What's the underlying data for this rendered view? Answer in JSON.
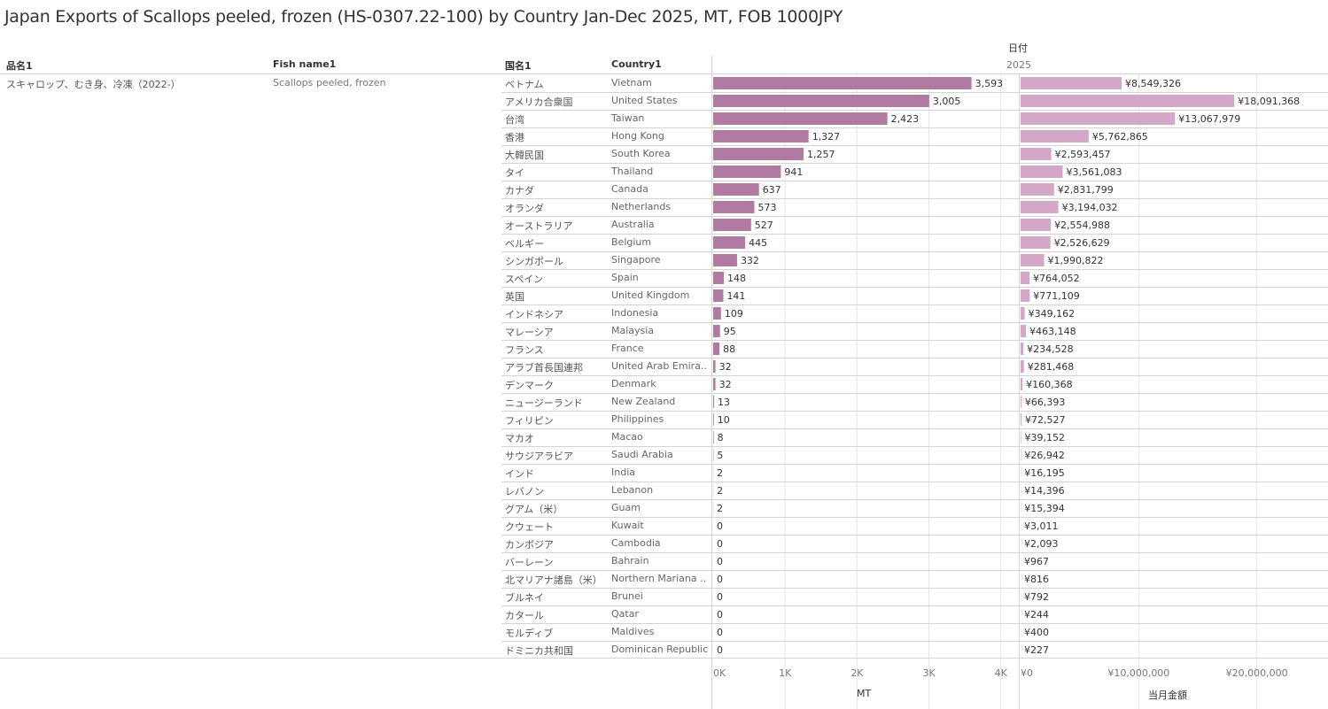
{
  "title": "Japan Exports of Scallops peeled, frozen (HS-0307.22-100) by Country Jan-Dec 2025, MT, FOB 1000JPY",
  "headers": {
    "product_jp": "品名1",
    "product_en": "Fish name1",
    "country_jp": "国名1",
    "country_en": "Country1",
    "date_field": "日付",
    "year": "2025"
  },
  "product": {
    "jp": "スキャロップ、むき身、冷凍（2022-）",
    "en": "Scallops peeled, frozen"
  },
  "colors": {
    "mt_bar": "#b07aa1",
    "value_bar": "#d4a6c8",
    "grid": "#e6e6e6",
    "rule": "#d4d4d4"
  },
  "chart_data": [
    {
      "type": "bar",
      "orientation": "horizontal",
      "xlabel": "MT",
      "xlim": [
        0,
        4300
      ],
      "ticks": [
        0,
        1000,
        2000,
        3000,
        4000
      ],
      "tick_labels": [
        "0K",
        "1K",
        "2K",
        "3K",
        "4K"
      ],
      "grid": true,
      "values": [
        3593,
        3005,
        2423,
        1327,
        1257,
        941,
        637,
        573,
        527,
        445,
        332,
        148,
        141,
        109,
        95,
        88,
        32,
        32,
        13,
        10,
        8,
        5,
        2,
        2,
        2,
        0,
        0,
        0,
        0,
        0,
        0,
        0,
        0
      ],
      "labels": [
        "3,593",
        "3,005",
        "2,423",
        "1,327",
        "1,257",
        "941",
        "637",
        "573",
        "527",
        "445",
        "332",
        "148",
        "141",
        "109",
        "95",
        "88",
        "32",
        "32",
        "13",
        "10",
        "8",
        "5",
        "2",
        "2",
        "2",
        "0",
        "0",
        "0",
        "0",
        "0",
        "0",
        "0",
        "0"
      ]
    },
    {
      "type": "bar",
      "orientation": "horizontal",
      "xlabel": "当月金額",
      "xlim": [
        0,
        25500000
      ],
      "ticks": [
        0,
        10000000,
        20000000
      ],
      "tick_labels": [
        "¥0",
        "¥10,000,000",
        "¥20,000,000"
      ],
      "grid": true,
      "values": [
        8549326,
        18091368,
        13067979,
        5762865,
        2593457,
        3561083,
        2831799,
        3194032,
        2554988,
        2526629,
        1990822,
        764052,
        771109,
        349162,
        463148,
        234528,
        281468,
        160368,
        66393,
        72527,
        39152,
        26942,
        16195,
        14396,
        15394,
        3011,
        2093,
        967,
        816,
        792,
        244,
        400,
        227
      ],
      "labels": [
        "¥8,549,326",
        "¥18,091,368",
        "¥13,067,979",
        "¥5,762,865",
        "¥2,593,457",
        "¥3,561,083",
        "¥2,831,799",
        "¥3,194,032",
        "¥2,554,988",
        "¥2,526,629",
        "¥1,990,822",
        "¥764,052",
        "¥771,109",
        "¥349,162",
        "¥463,148",
        "¥234,528",
        "¥281,468",
        "¥160,368",
        "¥66,393",
        "¥72,527",
        "¥39,152",
        "¥26,942",
        "¥16,195",
        "¥14,396",
        "¥15,394",
        "¥3,011",
        "¥2,093",
        "¥967",
        "¥816",
        "¥792",
        "¥244",
        "¥400",
        "¥227"
      ]
    }
  ],
  "countries": [
    {
      "jp": "ベトナム",
      "en": "Vietnam"
    },
    {
      "jp": "アメリカ合衆国",
      "en": "United States"
    },
    {
      "jp": "台湾",
      "en": "Taiwan"
    },
    {
      "jp": "香港",
      "en": "Hong Kong"
    },
    {
      "jp": "大韓民国",
      "en": "South Korea"
    },
    {
      "jp": "タイ",
      "en": "Thailand"
    },
    {
      "jp": "カナダ",
      "en": "Canada"
    },
    {
      "jp": "オランダ",
      "en": "Netherlands"
    },
    {
      "jp": "オーストラリア",
      "en": "Australia"
    },
    {
      "jp": "ベルギー",
      "en": "Belgium"
    },
    {
      "jp": "シンガポール",
      "en": "Singapore"
    },
    {
      "jp": "スペイン",
      "en": "Spain"
    },
    {
      "jp": "英国",
      "en": "United Kingdom"
    },
    {
      "jp": "インドネシア",
      "en": "Indonesia"
    },
    {
      "jp": "マレーシア",
      "en": "Malaysia"
    },
    {
      "jp": "フランス",
      "en": "France"
    },
    {
      "jp": "アラブ首長国連邦",
      "en": "United Arab Emira.."
    },
    {
      "jp": "デンマーク",
      "en": "Denmark"
    },
    {
      "jp": "ニュージーランド",
      "en": "New Zealand"
    },
    {
      "jp": "フィリピン",
      "en": "Philippines"
    },
    {
      "jp": "マカオ",
      "en": "Macao"
    },
    {
      "jp": "サウジアラビア",
      "en": "Saudi Arabia"
    },
    {
      "jp": "インド",
      "en": "India"
    },
    {
      "jp": "レバノン",
      "en": "Lebanon"
    },
    {
      "jp": "グアム（米）",
      "en": "Guam"
    },
    {
      "jp": "クウェート",
      "en": "Kuwait"
    },
    {
      "jp": "カンボジア",
      "en": "Cambodia"
    },
    {
      "jp": "バーレーン",
      "en": "Bahrain"
    },
    {
      "jp": "北マリアナ諸島（米）",
      "en": "Northern Mariana .."
    },
    {
      "jp": "ブルネイ",
      "en": "Brunei"
    },
    {
      "jp": "カタール",
      "en": "Qatar"
    },
    {
      "jp": "モルディブ",
      "en": "Maldives"
    },
    {
      "jp": "ドミニカ共和国",
      "en": "Dominican Republic"
    }
  ]
}
